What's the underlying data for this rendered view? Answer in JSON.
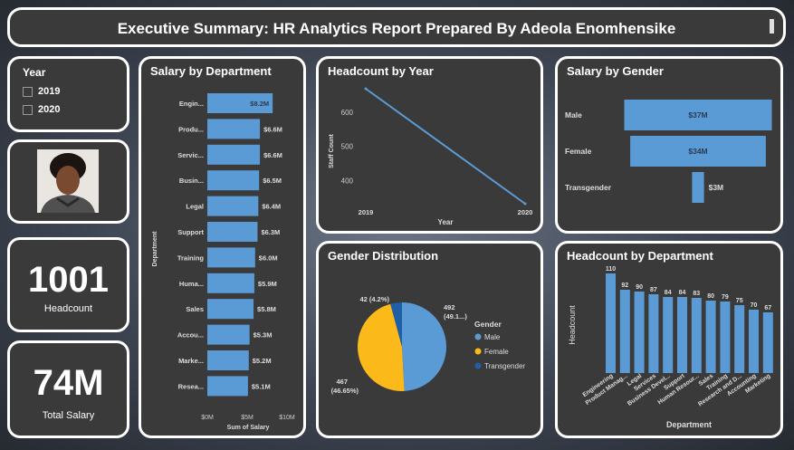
{
  "title": "Executive Summary: HR Analytics Report Prepared By Adeola Enomhensike",
  "year_filter": {
    "title": "Year",
    "options": [
      "2019",
      "2020"
    ]
  },
  "kpis": [
    {
      "value": "1001",
      "label": "Headcount"
    },
    {
      "value": "74M",
      "label": "Total Salary"
    }
  ],
  "colors": {
    "bar": "#5b9bd5",
    "male": "#5b9bd5",
    "female": "#fbb91a",
    "transgender": "#1f5fa6"
  },
  "chart_data": [
    {
      "id": "salary_by_department",
      "type": "bar",
      "orientation": "horizontal",
      "title": "Salary by Department",
      "xlabel": "Sum of Salary",
      "ylabel": "Department",
      "categories": [
        "Engin...",
        "Produ...",
        "Servic...",
        "Busin...",
        "Legal",
        "Support",
        "Training",
        "Huma...",
        "Sales",
        "Accou...",
        "Marke...",
        "Resea..."
      ],
      "values": [
        8.2,
        6.6,
        6.6,
        6.5,
        6.4,
        6.3,
        6.0,
        5.9,
        5.8,
        5.3,
        5.2,
        5.1
      ],
      "labels": [
        "$8.2M",
        "$6.6M",
        "$6.6M",
        "$6.5M",
        "$6.4M",
        "$6.3M",
        "$6.0M",
        "$5.9M",
        "$5.8M",
        "$5.3M",
        "$5.2M",
        "$5.1M"
      ],
      "xticks": [
        "$0M",
        "$5M",
        "$10M"
      ],
      "xlim": [
        0,
        10
      ]
    },
    {
      "id": "headcount_by_year",
      "type": "line",
      "title": "Headcount by Year",
      "xlabel": "Year",
      "ylabel": "Staff Count",
      "x": [
        "2019",
        "2020"
      ],
      "values": [
        668,
        333
      ],
      "yticks": [
        "600",
        "500",
        "400"
      ],
      "ylim": [
        333,
        668
      ]
    },
    {
      "id": "gender_distribution",
      "type": "pie",
      "title": "Gender Distribution",
      "legend_title": "Gender",
      "categories": [
        "Male",
        "Female",
        "Transgender"
      ],
      "values": [
        492,
        467,
        42
      ],
      "labels": [
        "492\n(49.1...)",
        "467\n(46.65%)",
        "42 (4.2%)"
      ]
    },
    {
      "id": "salary_by_gender",
      "type": "bar",
      "orientation": "horizontal",
      "title": "Salary by Gender",
      "categories": [
        "Male",
        "Female",
        "Transgender"
      ],
      "values": [
        37,
        34,
        3
      ],
      "labels": [
        "$37M",
        "$34M",
        "$3M"
      ]
    },
    {
      "id": "headcount_by_department",
      "type": "bar",
      "title": "Headcount by Department",
      "xlabel": "Department",
      "ylabel": "Headcount",
      "categories": [
        "Engineering",
        "Product Manag...",
        "Legal",
        "Services",
        "Business Devel...",
        "Support",
        "Human Resour...",
        "Sales",
        "Training",
        "Research and D...",
        "Accounting",
        "Marketing"
      ],
      "values": [
        110,
        92,
        90,
        87,
        84,
        84,
        83,
        80,
        79,
        75,
        70,
        67
      ]
    }
  ]
}
